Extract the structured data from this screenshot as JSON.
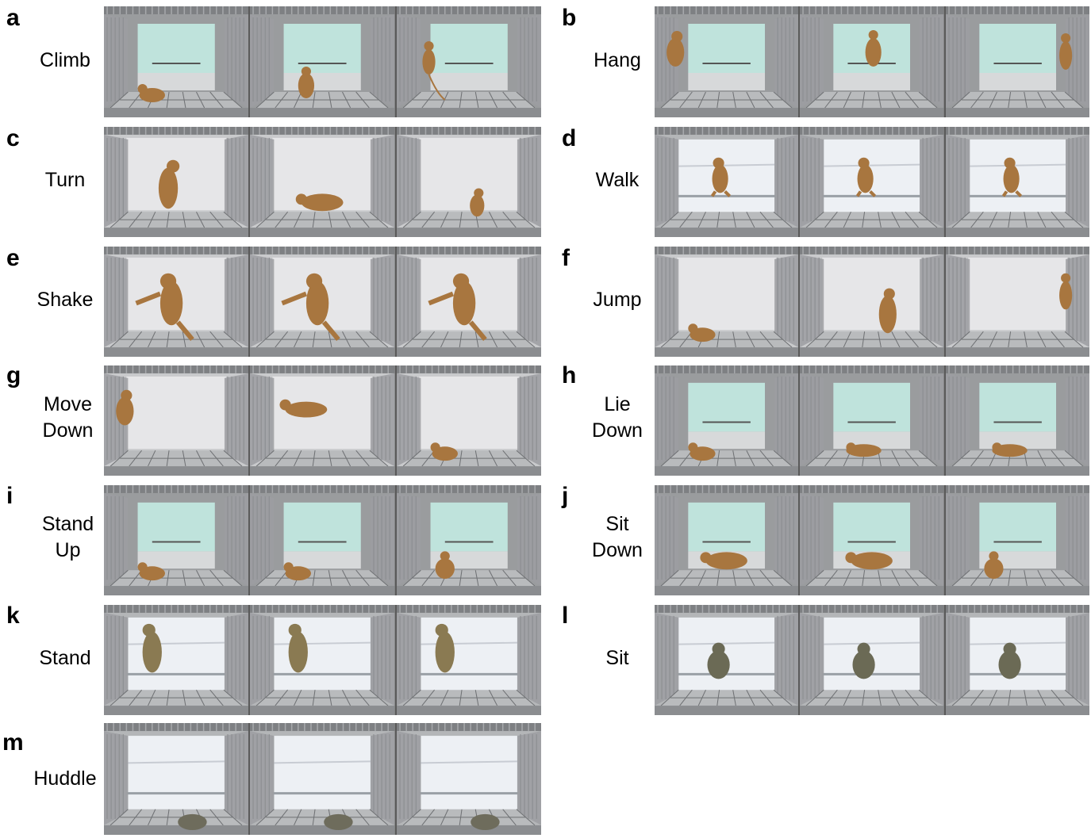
{
  "panels": [
    {
      "letter": "a",
      "label": [
        "Climb"
      ],
      "scene": "teal",
      "pose": [
        "crouch",
        "climb",
        "hang-high"
      ]
    },
    {
      "letter": "b",
      "label": [
        "Hang"
      ],
      "scene": "teal",
      "pose": [
        "hang-left",
        "hang-mid",
        "hang-right"
      ]
    },
    {
      "letter": "c",
      "label": [
        "Turn"
      ],
      "scene": "white",
      "pose": [
        "upright",
        "walk4",
        "small"
      ]
    },
    {
      "letter": "d",
      "label": [
        "Walk"
      ],
      "scene": "sheet",
      "pose": [
        "walk-bar",
        "walk-bar",
        "walk-bar"
      ]
    },
    {
      "letter": "e",
      "label": [
        "Shake"
      ],
      "scene": "white",
      "pose": [
        "shake",
        "shake",
        "shake"
      ]
    },
    {
      "letter": "f",
      "label": [
        "Jump"
      ],
      "scene": "white",
      "pose": [
        "crouch",
        "jump-up",
        "hang-right"
      ]
    },
    {
      "letter": "g",
      "label": [
        "Move",
        "Down"
      ],
      "scene": "white",
      "pose": [
        "hang-left",
        "leap",
        "crouch"
      ]
    },
    {
      "letter": "h",
      "label": [
        "Lie",
        "Down"
      ],
      "scene": "teal",
      "pose": [
        "crouch",
        "lie",
        "lie"
      ]
    },
    {
      "letter": "i",
      "label": [
        "Stand",
        "Up"
      ],
      "scene": "teal",
      "pose": [
        "crouch",
        "crouch",
        "sit"
      ]
    },
    {
      "letter": "j",
      "label": [
        "Sit",
        "Down"
      ],
      "scene": "teal",
      "pose": [
        "walk4",
        "walk4",
        "sit"
      ]
    },
    {
      "letter": "k",
      "label": [
        "Stand"
      ],
      "scene": "sheet",
      "pose": [
        "stand-bar",
        "stand-bar",
        "stand-bar"
      ]
    },
    {
      "letter": "l",
      "label": [
        "Sit"
      ],
      "scene": "sheet",
      "pose": [
        "sit-bar",
        "sit-bar",
        "sit-bar"
      ]
    },
    {
      "letter": "m",
      "label": [
        "Huddle"
      ],
      "scene": "sheet",
      "pose": [
        "huddle",
        "huddle",
        "huddle"
      ]
    }
  ],
  "colors": {
    "teal_window": "#bfe3dc",
    "white_wall": "#e6e6e8",
    "sheet_wall": "#edf0f4",
    "cage_metal": "#8d8f92",
    "monkey": "#a8763f"
  }
}
